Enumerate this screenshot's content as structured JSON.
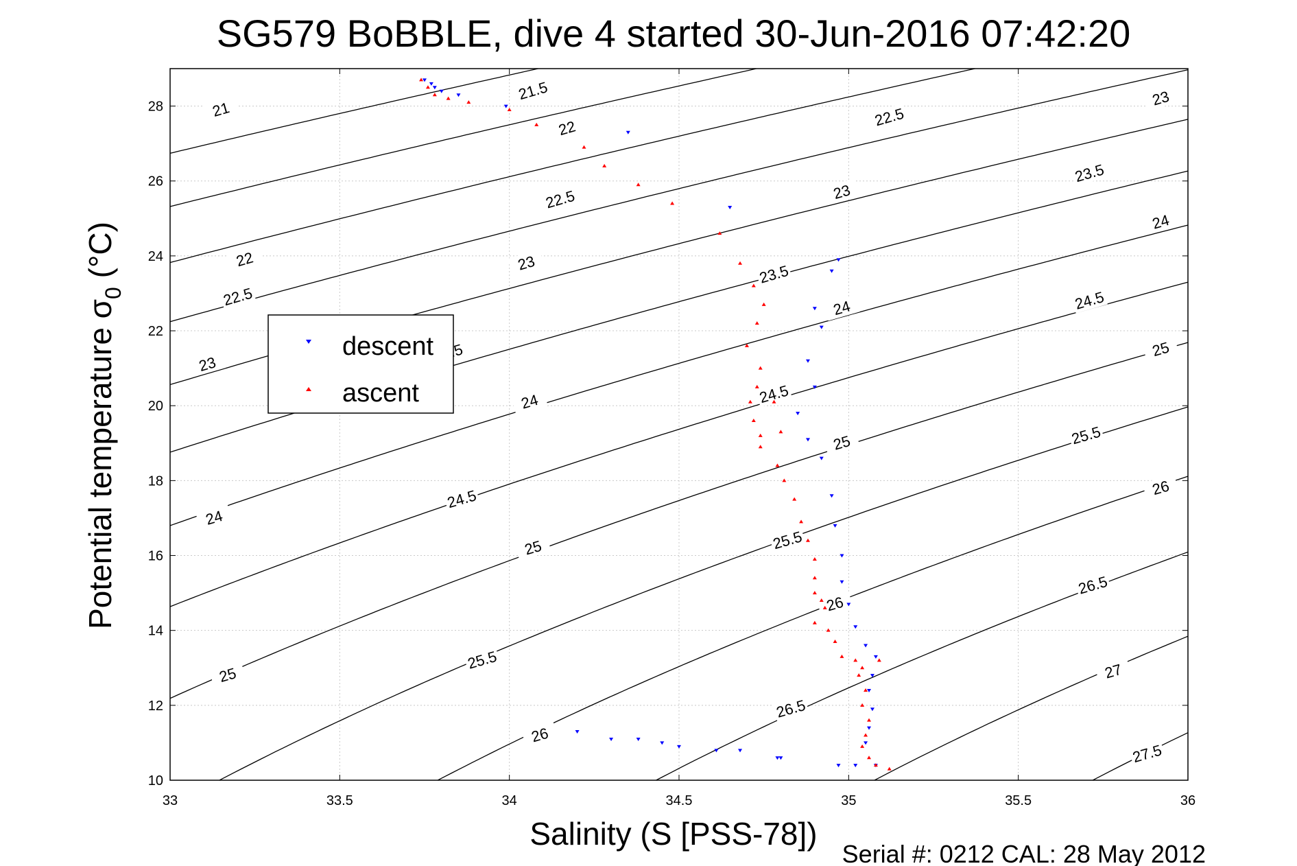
{
  "chart_data": {
    "type": "scatter",
    "title": "SG579 BoBBLE, dive 4 started 30-Jun-2016 07:42:20",
    "xlabel": "Salinity (S [PSS-78])",
    "ylabel": "Potential temperature σ",
    "ylabel_sub": "0",
    "ylabel_unit": " (°C)",
    "xlim": [
      33,
      36
    ],
    "ylim": [
      10,
      29
    ],
    "xticks": [
      33,
      33.5,
      34,
      34.5,
      35,
      35.5,
      36
    ],
    "xtick_labels": [
      "33",
      "33.5",
      "34",
      "34.5",
      "35",
      "35.5",
      "36"
    ],
    "yticks": [
      10,
      12,
      14,
      16,
      18,
      20,
      22,
      24,
      26,
      28
    ],
    "ytick_labels": [
      "10",
      "12",
      "14",
      "16",
      "18",
      "20",
      "22",
      "24",
      "26",
      "28"
    ],
    "grid": true,
    "legend_position": "upper-left",
    "colors": {
      "descent": "#0000ff",
      "ascent": "#ff0000",
      "contour": "#000000",
      "grid": "#c8c8c8"
    },
    "footer": "Serial #: 0212  CAL: 28 May 2012",
    "series": [
      {
        "name": "descent",
        "marker": "triangle-down",
        "x": [
          33.75,
          33.77,
          33.78,
          33.8,
          33.85,
          33.99,
          34.35,
          34.65,
          34.97,
          34.95,
          34.9,
          34.92,
          34.88,
          34.9,
          34.85,
          34.88,
          34.92,
          34.95,
          34.96,
          34.98,
          34.98,
          35.0,
          35.02,
          35.05,
          35.08,
          35.07,
          35.06,
          35.07,
          35.06,
          35.05,
          35.08,
          34.8,
          34.79,
          34.68,
          34.61,
          34.5,
          34.45,
          34.38,
          34.3,
          34.2,
          34.97,
          35.02
        ],
        "y": [
          28.7,
          28.6,
          28.5,
          28.4,
          28.3,
          28.0,
          27.3,
          25.3,
          23.9,
          23.6,
          22.6,
          22.1,
          21.2,
          20.5,
          19.8,
          19.1,
          18.6,
          17.6,
          16.8,
          16.0,
          15.3,
          14.7,
          14.1,
          13.6,
          13.3,
          12.8,
          12.4,
          11.9,
          11.4,
          11.0,
          10.4,
          10.6,
          10.6,
          10.8,
          10.8,
          10.9,
          11.0,
          11.1,
          11.1,
          11.3,
          10.4,
          10.4
        ]
      },
      {
        "name": "ascent",
        "marker": "triangle-up",
        "x": [
          33.74,
          33.76,
          33.78,
          33.82,
          33.88,
          34.0,
          34.08,
          34.22,
          34.28,
          34.38,
          34.48,
          34.62,
          34.68,
          34.72,
          34.75,
          34.73,
          34.7,
          34.74,
          34.73,
          34.71,
          34.72,
          34.74,
          34.78,
          34.8,
          34.74,
          34.79,
          34.81,
          34.84,
          34.86,
          34.88,
          34.9,
          34.9,
          34.9,
          34.92,
          34.93,
          34.9,
          34.94,
          34.96,
          34.98,
          35.02,
          35.04,
          35.09,
          35.03,
          35.05,
          35.04,
          35.06,
          35.05,
          35.04,
          35.06,
          35.08,
          35.12
        ],
        "y": [
          28.7,
          28.5,
          28.3,
          28.2,
          28.1,
          27.9,
          27.5,
          26.9,
          26.4,
          25.9,
          25.4,
          24.6,
          23.8,
          23.2,
          22.7,
          22.2,
          21.6,
          21.0,
          20.5,
          20.1,
          19.6,
          19.2,
          20.1,
          19.3,
          18.9,
          18.4,
          18.0,
          17.5,
          16.9,
          16.4,
          15.9,
          15.4,
          15.0,
          14.8,
          14.6,
          14.2,
          14.0,
          13.7,
          13.3,
          13.2,
          13.0,
          13.2,
          12.8,
          12.4,
          12.0,
          11.6,
          11.2,
          10.9,
          10.6,
          10.4,
          10.3
        ]
      }
    ],
    "contour_levels": [
      21,
      21.5,
      22,
      22.5,
      23,
      23.5,
      24,
      24.5,
      25,
      25.5,
      26,
      26.5,
      27,
      27.5
    ],
    "contour_labels": [
      {
        "text": "21",
        "s": 33.15,
        "t": 27.9
      },
      {
        "text": "21.5",
        "s": 34.07,
        "t": 28.4
      },
      {
        "text": "22",
        "s": 34.17,
        "t": 27.4
      },
      {
        "text": "22.5",
        "s": 35.12,
        "t": 27.7
      },
      {
        "text": "23",
        "s": 35.92,
        "t": 28.2
      },
      {
        "text": "22",
        "s": 33.22,
        "t": 23.9
      },
      {
        "text": "22.5",
        "s": 34.15,
        "t": 25.5
      },
      {
        "text": "23",
        "s": 34.98,
        "t": 25.7
      },
      {
        "text": "23.5",
        "s": 35.71,
        "t": 26.2
      },
      {
        "text": "24",
        "s": 35.92,
        "t": 24.9
      },
      {
        "text": "22.5",
        "s": 33.2,
        "t": 22.9
      },
      {
        "text": "23",
        "s": 34.05,
        "t": 23.8
      },
      {
        "text": "23.5",
        "s": 34.78,
        "t": 23.5
      },
      {
        "text": "24",
        "s": 34.98,
        "t": 22.6
      },
      {
        "text": "24.5",
        "s": 35.71,
        "t": 22.8
      },
      {
        "text": "25",
        "s": 35.92,
        "t": 21.5
      },
      {
        "text": "23",
        "s": 33.11,
        "t": 21.1
      },
      {
        "text": "23.5",
        "s": 33.82,
        "t": 21.4
      },
      {
        "text": "24",
        "s": 34.06,
        "t": 20.1
      },
      {
        "text": "24.5",
        "s": 34.78,
        "t": 20.3
      },
      {
        "text": "25",
        "s": 34.98,
        "t": 19.0
      },
      {
        "text": "25.5",
        "s": 35.7,
        "t": 19.2
      },
      {
        "text": "26",
        "s": 35.92,
        "t": 17.8
      },
      {
        "text": "24",
        "s": 33.13,
        "t": 17.0
      },
      {
        "text": "24.5",
        "s": 33.86,
        "t": 17.5
      },
      {
        "text": "25",
        "s": 34.07,
        "t": 16.2
      },
      {
        "text": "25.5",
        "s": 34.82,
        "t": 16.4
      },
      {
        "text": "26",
        "s": 34.96,
        "t": 14.7
      },
      {
        "text": "26.5",
        "s": 35.72,
        "t": 15.2
      },
      {
        "text": "25",
        "s": 33.17,
        "t": 12.8
      },
      {
        "text": "25.5",
        "s": 33.92,
        "t": 13.2
      },
      {
        "text": "26",
        "s": 34.09,
        "t": 11.2
      },
      {
        "text": "26.5",
        "s": 34.83,
        "t": 11.9
      },
      {
        "text": "27",
        "s": 35.78,
        "t": 12.9
      },
      {
        "text": "27.5",
        "s": 35.88,
        "t": 10.7
      }
    ]
  },
  "legend": {
    "items": [
      {
        "label": "descent"
      },
      {
        "label": "ascent"
      }
    ]
  }
}
